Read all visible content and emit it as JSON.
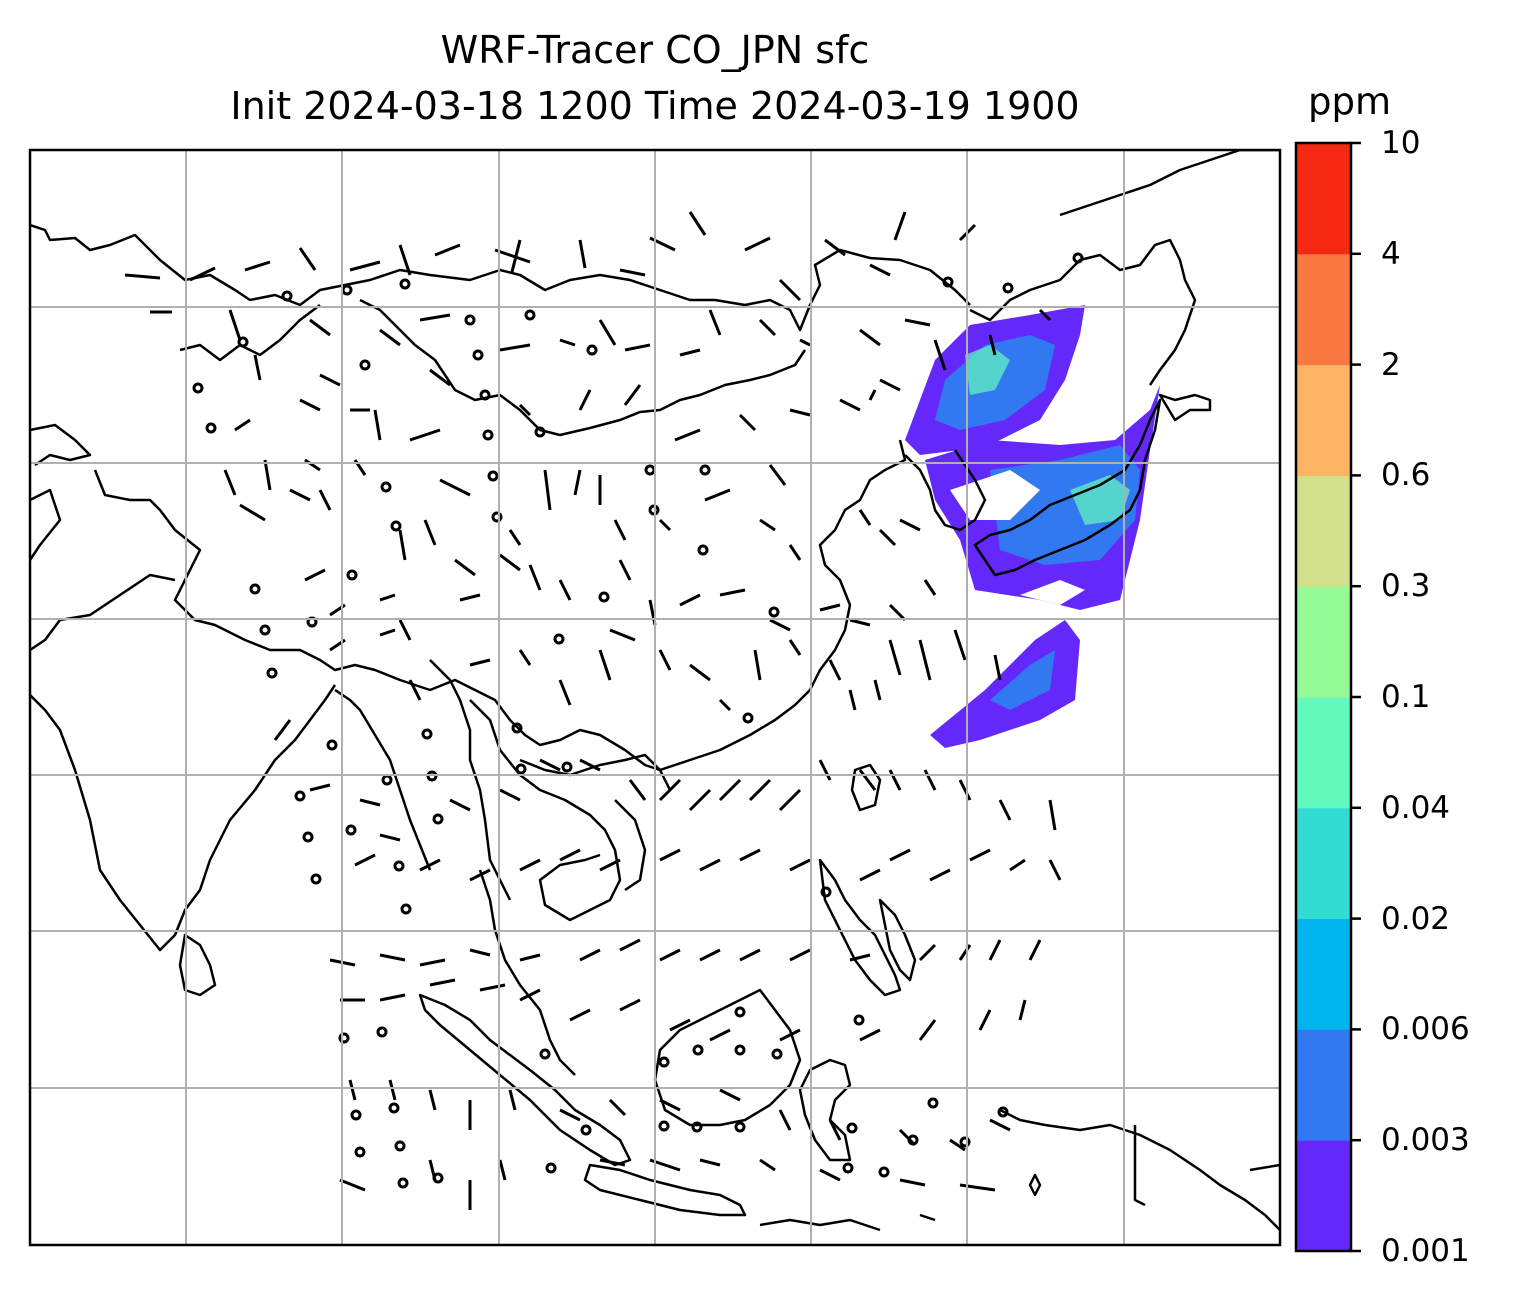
{
  "title_line1": "WRF-Tracer CO_JPN sfc",
  "title_line2": "Init 2024-03-18 1200 Time 2024-03-19 1900",
  "colorbar": {
    "unit": "ppm",
    "levels": [
      "0.001",
      "0.003",
      "0.006",
      "0.02",
      "0.04",
      "0.1",
      "0.3",
      "0.6",
      "2",
      "4",
      "10"
    ],
    "colors": [
      "#6428fa",
      "#3278f0",
      "#00b4ee",
      "#32dcd2",
      "#64fabe",
      "#96fa96",
      "#d2e08c",
      "#fcb464",
      "#fa7842",
      "#f52814"
    ]
  },
  "map": {
    "gridlines": true,
    "features": [
      "coastlines",
      "wind-barbs",
      "tracer-concentration-fill"
    ]
  }
}
